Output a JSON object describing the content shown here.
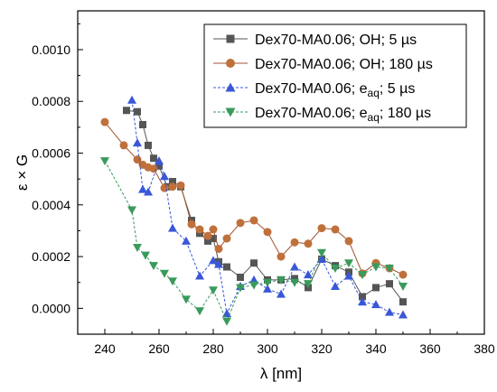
{
  "chart_data": {
    "type": "line",
    "xlabel": "λ [nm]",
    "ylabel": "ε × G",
    "xlim": [
      230,
      380
    ],
    "ylim": [
      -0.0001,
      0.00115
    ],
    "x_ticks": [
      240,
      260,
      280,
      300,
      320,
      340,
      360,
      380
    ],
    "y_ticks": [
      0.0,
      0.0002,
      0.0004,
      0.0006,
      0.0008,
      0.001
    ],
    "x_tick_labels": [
      "240",
      "260",
      "280",
      "300",
      "320",
      "340",
      "360",
      "380"
    ],
    "y_tick_labels": [
      "0.0000",
      "0.0002",
      "0.0004",
      "0.0006",
      "0.0008",
      "0.0010"
    ],
    "legend_position": "top-right",
    "series": [
      {
        "name": "Dex70-MA0.06; OH; 5 µs",
        "legend": {
          "main": "Dex70-MA0.06; OH; 5 µs",
          "sub": ""
        },
        "color": "#555555",
        "marker": "square",
        "dash": "solid",
        "x": [
          248,
          252,
          254,
          256,
          258,
          260,
          263,
          265,
          268,
          272,
          275,
          278,
          280,
          282,
          285,
          290,
          295,
          300,
          305,
          310,
          315,
          320,
          325,
          330,
          335,
          340,
          345,
          350
        ],
        "y": [
          0.000765,
          0.00076,
          0.00071,
          0.00063,
          0.00058,
          0.00055,
          0.00047,
          0.00049,
          0.00047,
          0.00034,
          0.00029,
          0.00026,
          0.00027,
          0.00018,
          0.00016,
          0.00012,
          0.000175,
          0.00011,
          0.00011,
          0.000115,
          8e-05,
          0.00019,
          0.000165,
          0.00014,
          4.5e-05,
          8e-05,
          9.5e-05,
          2.5e-05
        ]
      },
      {
        "name": "Dex70-MA0.06; OH; 180 µs",
        "legend": {
          "main": "Dex70-MA0.06; OH; 180 µs",
          "sub": ""
        },
        "color": "#a0522d",
        "fill": "#c0703a",
        "marker": "circle",
        "dash": "solid",
        "x": [
          240,
          247,
          252,
          254,
          256,
          258,
          262,
          265,
          268,
          272,
          275,
          278,
          280,
          282,
          285,
          290,
          295,
          300,
          305,
          310,
          315,
          320,
          325,
          330,
          335,
          340,
          345,
          350
        ],
        "y": [
          0.00072,
          0.00063,
          0.000575,
          0.000555,
          0.000545,
          0.00054,
          0.000465,
          0.00047,
          0.000475,
          0.000325,
          0.000305,
          0.00028,
          0.000305,
          0.00023,
          0.00027,
          0.00033,
          0.00034,
          0.000295,
          0.0002,
          0.000255,
          0.00025,
          0.00031,
          0.000305,
          0.00026,
          0.000135,
          0.000175,
          0.000155,
          0.00013
        ]
      },
      {
        "name": "Dex70-MA0.06; eaq; 5 µs",
        "legend": {
          "main": "Dex70-MA0.06; e",
          "sub": "aq",
          "tail": "; 5 µs"
        },
        "color": "#3a57d8",
        "marker": "triangle-up",
        "dash": "dashed",
        "x": [
          250,
          252,
          254,
          256,
          260,
          262,
          265,
          270,
          275,
          280,
          282,
          285,
          290,
          295,
          300,
          305,
          310,
          315,
          320,
          325,
          330,
          335,
          340,
          345,
          350
        ],
        "y": [
          0.000805,
          0.00064,
          0.00046,
          0.00045,
          0.00057,
          0.00051,
          0.00031,
          0.00026,
          0.000125,
          0.000185,
          0.00017,
          -2e-05,
          8.5e-05,
          0.00011,
          7.5e-05,
          5.5e-05,
          0.00016,
          0.00013,
          0.00019,
          8.5e-05,
          0.000125,
          2.5e-05,
          1.5e-05,
          -1.5e-05,
          -2.5e-05
        ]
      },
      {
        "name": "Dex70-MA0.06; eaq; 180 µs",
        "legend": {
          "main": "Dex70-MA0.06; e",
          "sub": "aq",
          "tail": "; 180 µs"
        },
        "color": "#3a9a5c",
        "marker": "triangle-down",
        "dash": "dashed",
        "x": [
          240,
          250,
          252,
          255,
          258,
          262,
          265,
          270,
          275,
          280,
          285,
          290,
          295,
          300,
          305,
          310,
          315,
          320,
          325,
          330,
          335,
          340,
          345,
          350
        ],
        "y": [
          0.00057,
          0.00038,
          0.000235,
          0.000205,
          0.000165,
          0.000135,
          0.000105,
          3.5e-05,
          -1e-05,
          7e-05,
          -5e-05,
          8e-05,
          9e-05,
          0.0001,
          0.00011,
          0.0001,
          9.5e-05,
          0.000215,
          0.000155,
          0.000175,
          0.00013,
          0.00016,
          0.000155,
          8.5e-05
        ]
      }
    ]
  }
}
